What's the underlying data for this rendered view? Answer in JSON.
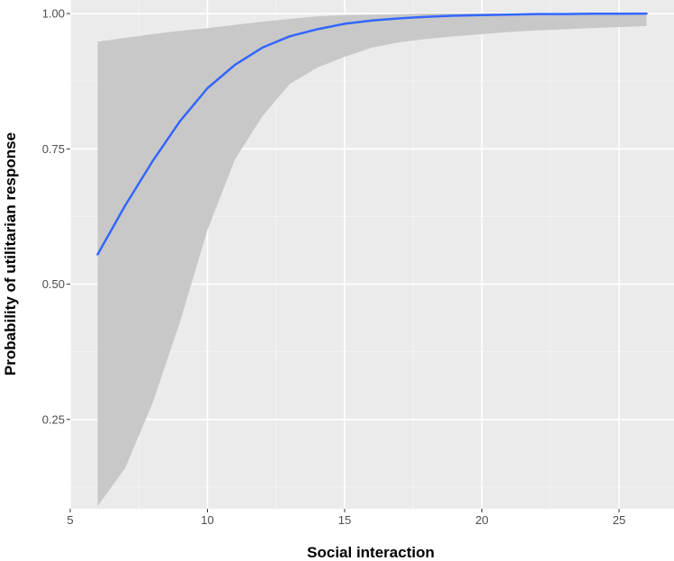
{
  "chart_data": {
    "type": "line",
    "title": "",
    "xlabel": "Social interaction",
    "ylabel": "Probability of utilitarian response",
    "xlim": [
      5,
      27
    ],
    "ylim": [
      0.085,
      1.025
    ],
    "x_ticks": [
      5,
      10,
      15,
      20,
      25
    ],
    "x_tick_labels": [
      "5",
      "10",
      "15",
      "20",
      "25"
    ],
    "y_ticks": [
      0.25,
      0.5,
      0.75,
      1.0
    ],
    "y_tick_labels": [
      "0.25",
      "0.50",
      "0.75",
      "1.00"
    ],
    "grid": true,
    "legend": "none",
    "colors": {
      "panel": "#ebebeb",
      "grid_major": "#ffffff",
      "grid_minor": "#f5f5f5",
      "ribbon": "#c8c8c8",
      "line": "#3366ff",
      "tick_text": "#4d4d4d",
      "axis_title": "#000000"
    },
    "series": [
      {
        "x": [
          6,
          7,
          8,
          9,
          10,
          11,
          12,
          13,
          14,
          15,
          16,
          17,
          18,
          19,
          20,
          21,
          22,
          23,
          24,
          25,
          26
        ],
        "values": [
          0.555,
          0.645,
          0.727,
          0.801,
          0.862,
          0.905,
          0.937,
          0.958,
          0.971,
          0.981,
          0.987,
          0.991,
          0.994,
          0.996,
          0.997,
          0.998,
          0.999,
          0.999,
          0.9995,
          0.9997,
          0.9998
        ],
        "lower": [
          0.09,
          0.16,
          0.28,
          0.43,
          0.6,
          0.73,
          0.81,
          0.87,
          0.9,
          0.92,
          0.937,
          0.947,
          0.953,
          0.958,
          0.962,
          0.966,
          0.969,
          0.971,
          0.973,
          0.975,
          0.977
        ],
        "upper": [
          0.948,
          0.955,
          0.962,
          0.968,
          0.973,
          0.979,
          0.985,
          0.99,
          0.995,
          0.997,
          0.998,
          0.999,
          1.0,
          1.0,
          1.0,
          1.0,
          1.0,
          1.0,
          1.0,
          1.0,
          1.0
        ]
      }
    ]
  }
}
